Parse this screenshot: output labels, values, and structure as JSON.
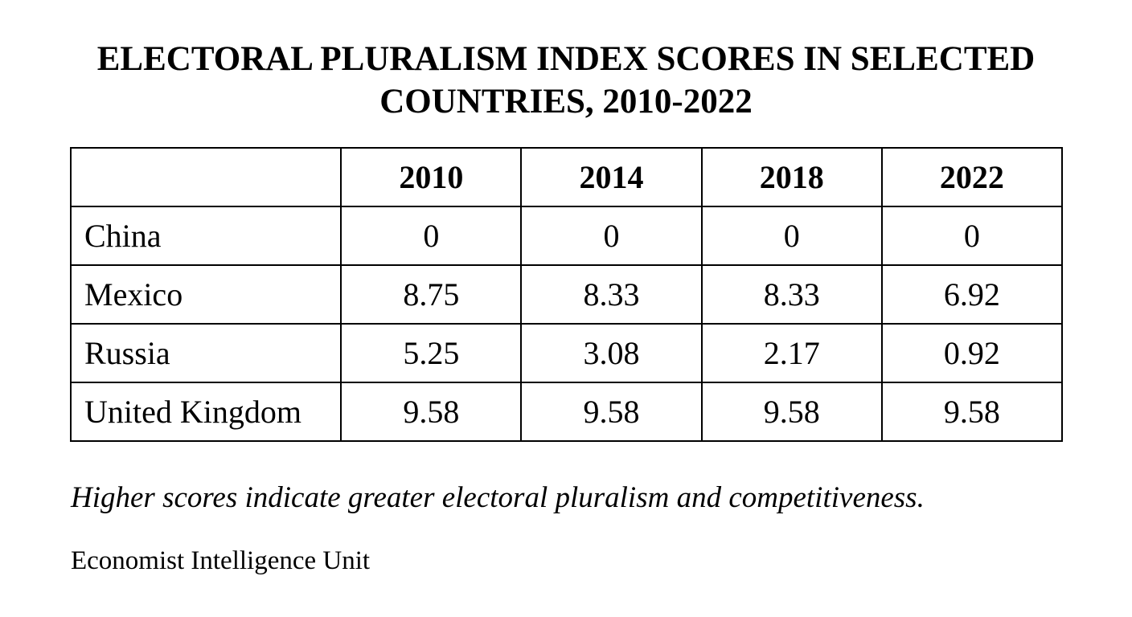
{
  "chart_data": {
    "type": "table",
    "title_lines": [
      "ELECTORAL PLURALISM INDEX SCORES IN SELECTED",
      "COUNTRIES, 2010-2022"
    ],
    "corner_header": "",
    "columns": [
      "2010",
      "2014",
      "2018",
      "2022"
    ],
    "rows": [
      {
        "name": "China",
        "values": [
          "0",
          "0",
          "0",
          "0"
        ]
      },
      {
        "name": "Mexico",
        "values": [
          "8.75",
          "8.33",
          "8.33",
          "6.92"
        ]
      },
      {
        "name": "Russia",
        "values": [
          "5.25",
          "3.08",
          "2.17",
          "0.92"
        ]
      },
      {
        "name": "United Kingdom",
        "values": [
          "9.58",
          "9.58",
          "9.58",
          "9.58"
        ]
      }
    ],
    "note": "Higher scores indicate greater electoral pluralism and competitiveness.",
    "source": "Economist Intelligence Unit"
  },
  "colors": {
    "text": "#000000",
    "border": "#000000",
    "background": "#ffffff"
  }
}
